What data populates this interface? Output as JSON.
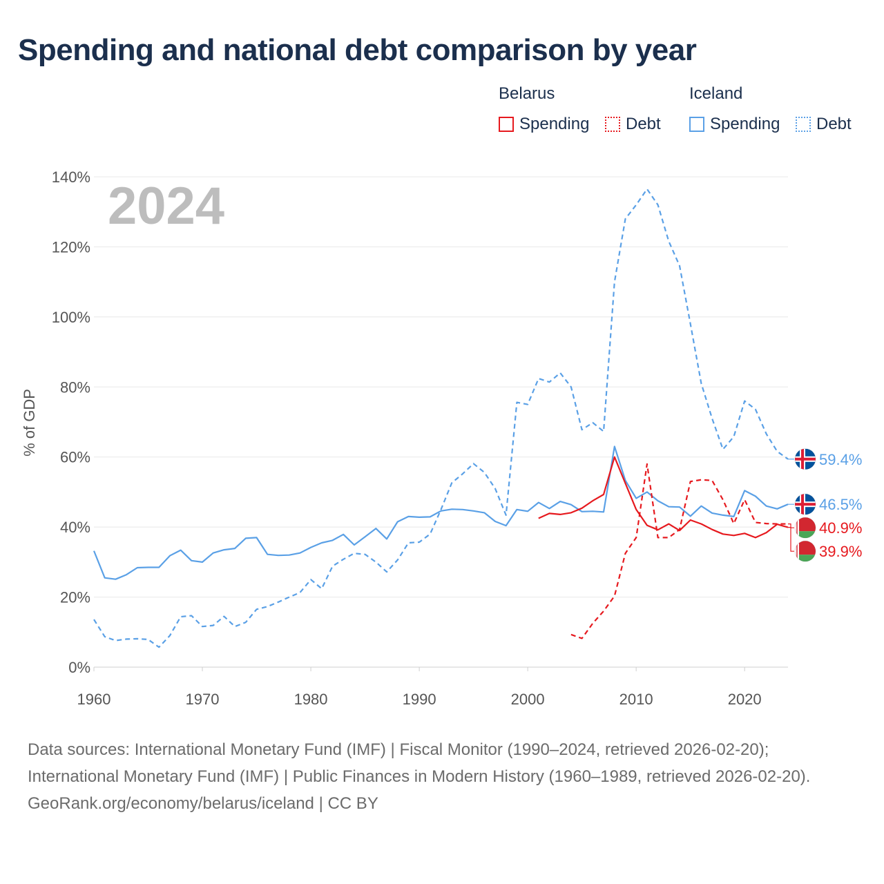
{
  "title": "Spending and national debt comparison by year",
  "legend": {
    "groups": [
      {
        "country": "Belarus",
        "items": [
          {
            "label": "Spending",
            "color": "#e6191e",
            "style": "solid"
          },
          {
            "label": "Debt",
            "color": "#e6191e",
            "style": "dotted"
          }
        ]
      },
      {
        "country": "Iceland",
        "items": [
          {
            "label": "Spending",
            "color": "#5aa0e6",
            "style": "solid"
          },
          {
            "label": "Debt",
            "color": "#5aa0e6",
            "style": "dotted"
          }
        ]
      }
    ]
  },
  "footer": {
    "sources": "Data sources: International Monetary Fund (IMF) | Fiscal Monitor (1990–2024, retrieved 2026-02-20); International Monetary Fund (IMF) | Public Finances in Modern History (1960–1989, retrieved 2026-02-20).",
    "url": "GeoRank.org/economy/belarus/iceland | CC BY"
  },
  "chart_data": {
    "type": "line",
    "title": "Spending and national debt comparison by year",
    "current_year": "2024",
    "xlabel": "",
    "ylabel": "% of GDP",
    "xlim": [
      1960,
      2024
    ],
    "ylim": [
      0,
      140
    ],
    "x_ticks": [
      1960,
      1970,
      1980,
      1990,
      2000,
      2010,
      2020
    ],
    "y_ticks": [
      0,
      20,
      40,
      60,
      80,
      100,
      120,
      140
    ],
    "y_tick_labels": [
      "0%",
      "20%",
      "40%",
      "60%",
      "80%",
      "100%",
      "120%",
      "140%"
    ],
    "grid": true,
    "series": [
      {
        "name": "Iceland Debt",
        "country": "Iceland",
        "metric": "Debt",
        "color": "#5aa0e6",
        "dashed": true,
        "start_year": 1960,
        "values": [
          13.6,
          8.7,
          7.6,
          8.0,
          8.1,
          7.9,
          5.7,
          9.0,
          14.4,
          14.7,
          11.6,
          11.9,
          14.5,
          11.6,
          12.8,
          16.5,
          17.3,
          18.6,
          20.0,
          21.3,
          25.0,
          22.4,
          28.8,
          30.8,
          32.5,
          32.2,
          30.0,
          27.2,
          30.6,
          35.5,
          35.7,
          38.0,
          45.0,
          52.6,
          55.2,
          58.1,
          55.6,
          51.0,
          43.4,
          75.6,
          75.0,
          82.4,
          81.4,
          84.0,
          80.0,
          67.8,
          69.8,
          67.3,
          110.0,
          128.0,
          132.0,
          136.5,
          132.0,
          121.6,
          114.6,
          98.0,
          81.0,
          71.0,
          62.2,
          65.8,
          76.0,
          73.6,
          66.6,
          61.6,
          59.4
        ],
        "end_label": "59.4%"
      },
      {
        "name": "Iceland Spending",
        "country": "Iceland",
        "metric": "Spending",
        "color": "#5aa0e6",
        "dashed": false,
        "start_year": 1960,
        "values": [
          33.2,
          25.5,
          25.1,
          26.4,
          28.4,
          28.5,
          28.5,
          31.8,
          33.4,
          30.4,
          30.0,
          32.6,
          33.5,
          33.9,
          36.8,
          37.0,
          32.2,
          31.9,
          32.0,
          32.6,
          34.2,
          35.5,
          36.2,
          37.9,
          34.9,
          37.2,
          39.6,
          36.6,
          41.5,
          43.0,
          42.8,
          42.9,
          44.6,
          45.1,
          45.0,
          44.6,
          44.1,
          41.6,
          40.4,
          45.0,
          44.5,
          47.0,
          45.3,
          47.3,
          46.4,
          44.4,
          44.5,
          44.3,
          63.0,
          53.3,
          48.2,
          50.0,
          47.5,
          45.8,
          45.7,
          43.1,
          46.0,
          44.0,
          43.4,
          43.0,
          50.4,
          48.8,
          46.0,
          45.2,
          46.5
        ],
        "end_label": "46.5%"
      },
      {
        "name": "Belarus Debt",
        "country": "Belarus",
        "metric": "Debt",
        "color": "#e6191e",
        "dashed": true,
        "start_year": 2004,
        "values": [
          9.3,
          8.2,
          12.5,
          16.0,
          20.3,
          32.5,
          37.0,
          58.0,
          37.0,
          37.0,
          39.3,
          53.0,
          53.5,
          53.3,
          47.8,
          41.0,
          47.8,
          41.3,
          41.0,
          40.9,
          40.9
        ],
        "end_label": "40.9%"
      },
      {
        "name": "Belarus Spending",
        "country": "Belarus",
        "metric": "Spending",
        "color": "#e6191e",
        "dashed": false,
        "start_year": 2001,
        "values": [
          42.5,
          43.9,
          43.6,
          44.1,
          45.4,
          47.5,
          49.3,
          60.0,
          52.5,
          45.0,
          40.5,
          39.2,
          40.9,
          39.0,
          42.0,
          40.9,
          39.3,
          38.0,
          37.6,
          38.2,
          37.0,
          38.4,
          40.8,
          39.9
        ],
        "end_label": "39.9%"
      }
    ]
  }
}
